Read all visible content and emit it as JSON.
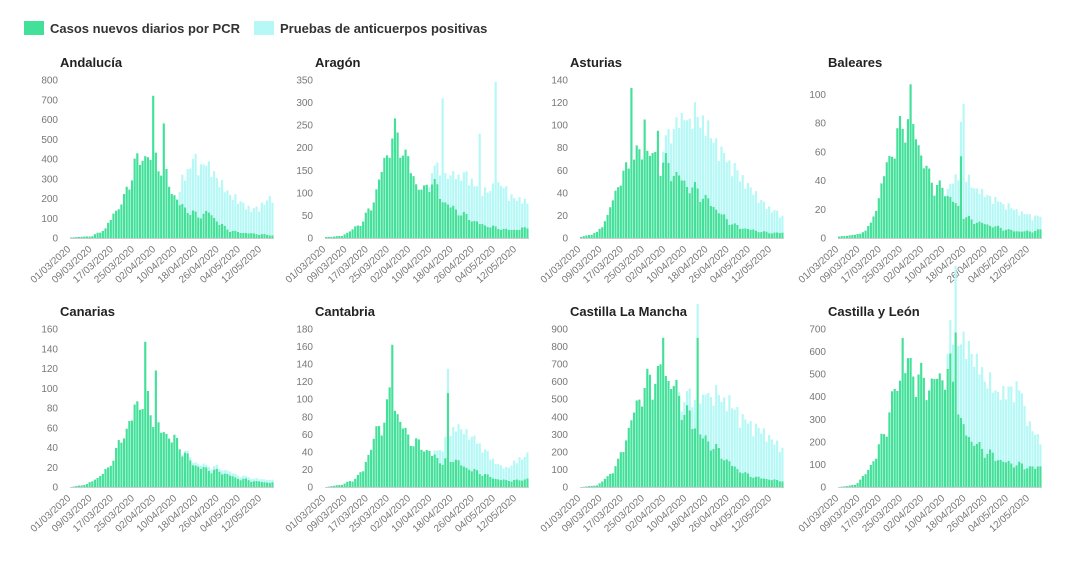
{
  "legend": {
    "pcr_label": "Casos nuevos diarios por PCR",
    "ab_label": "Pruebas de anticuerpos positivas"
  },
  "colors": {
    "pcr": "#43e09a",
    "ab": "#b5f8f6",
    "axis": "#cccccc",
    "text": "#777777"
  },
  "chart_data": [
    {
      "type": "bar",
      "title": "Andalucía",
      "xlabel": "",
      "ylabel": "",
      "ylim": [
        0,
        800
      ],
      "yticks": [
        0,
        100,
        200,
        300,
        400,
        500,
        600,
        700,
        800
      ],
      "xticks": [
        "01/03/2020",
        "09/03/2020",
        "17/03/2020",
        "25/03/2020",
        "02/04/2020",
        "10/04/2020",
        "18/04/2020",
        "26/04/2020",
        "04/05/2020",
        "12/05/2020"
      ],
      "pcr_knots": [
        [
          0,
          3
        ],
        [
          8,
          10
        ],
        [
          13,
          50
        ],
        [
          16,
          130
        ],
        [
          20,
          210
        ],
        [
          24,
          400
        ],
        [
          28,
          450
        ],
        [
          32,
          440
        ],
        [
          36,
          330
        ],
        [
          40,
          200
        ],
        [
          44,
          150
        ],
        [
          48,
          120
        ],
        [
          52,
          140
        ],
        [
          56,
          80
        ],
        [
          60,
          40
        ],
        [
          64,
          30
        ],
        [
          68,
          25
        ],
        [
          72,
          20
        ],
        [
          76,
          15
        ]
      ],
      "ab_knots": [
        [
          0,
          0
        ],
        [
          40,
          0
        ],
        [
          42,
          150
        ],
        [
          46,
          300
        ],
        [
          52,
          260
        ],
        [
          56,
          230
        ],
        [
          60,
          200
        ],
        [
          64,
          170
        ],
        [
          68,
          130
        ],
        [
          72,
          160
        ],
        [
          76,
          220
        ]
      ],
      "pcr_spikes": [
        [
          31,
          720
        ],
        [
          35,
          580
        ]
      ],
      "ab_spikes": []
    },
    {
      "type": "bar",
      "title": "Aragón",
      "xlabel": "",
      "ylabel": "",
      "ylim": [
        0,
        350
      ],
      "yticks": [
        0,
        50,
        100,
        150,
        200,
        250,
        300,
        350
      ],
      "xticks": [
        "01/03/2020",
        "09/03/2020",
        "17/03/2020",
        "25/03/2020",
        "02/04/2020",
        "10/04/2020",
        "18/04/2020",
        "26/04/2020",
        "04/05/2020",
        "12/05/2020"
      ],
      "pcr_knots": [
        [
          0,
          2
        ],
        [
          6,
          5
        ],
        [
          10,
          20
        ],
        [
          14,
          40
        ],
        [
          18,
          90
        ],
        [
          22,
          180
        ],
        [
          25,
          240
        ],
        [
          28,
          230
        ],
        [
          31,
          180
        ],
        [
          34,
          130
        ],
        [
          37,
          110
        ],
        [
          40,
          140
        ],
        [
          44,
          90
        ],
        [
          48,
          70
        ],
        [
          52,
          55
        ],
        [
          56,
          40
        ],
        [
          60,
          30
        ],
        [
          64,
          25
        ],
        [
          68,
          20
        ],
        [
          72,
          20
        ],
        [
          76,
          25
        ]
      ],
      "ab_knots": [
        [
          0,
          0
        ],
        [
          38,
          0
        ],
        [
          42,
          50
        ],
        [
          46,
          70
        ],
        [
          50,
          90
        ],
        [
          54,
          100
        ],
        [
          58,
          80
        ],
        [
          62,
          90
        ],
        [
          66,
          110
        ],
        [
          70,
          80
        ],
        [
          74,
          70
        ],
        [
          76,
          60
        ]
      ],
      "pcr_spikes": [
        [
          26,
          265
        ]
      ],
      "ab_spikes": [
        [
          44,
          230
        ],
        [
          58,
          200
        ],
        [
          64,
          320
        ]
      ]
    },
    {
      "type": "bar",
      "title": "Asturias",
      "xlabel": "",
      "ylabel": "",
      "ylim": [
        0,
        140
      ],
      "yticks": [
        0,
        20,
        40,
        60,
        80,
        100,
        120,
        140
      ],
      "xticks": [
        "01/03/2020",
        "09/03/2020",
        "17/03/2020",
        "25/03/2020",
        "02/04/2020",
        "10/04/2020",
        "18/04/2020",
        "26/04/2020",
        "04/05/2020",
        "12/05/2020"
      ],
      "pcr_knots": [
        [
          0,
          1
        ],
        [
          6,
          5
        ],
        [
          10,
          20
        ],
        [
          13,
          45
        ],
        [
          16,
          60
        ],
        [
          20,
          75
        ],
        [
          24,
          85
        ],
        [
          28,
          75
        ],
        [
          32,
          70
        ],
        [
          36,
          60
        ],
        [
          40,
          50
        ],
        [
          44,
          45
        ],
        [
          48,
          35
        ],
        [
          52,
          25
        ],
        [
          56,
          15
        ],
        [
          60,
          10
        ],
        [
          64,
          8
        ],
        [
          68,
          6
        ],
        [
          72,
          5
        ],
        [
          76,
          5
        ]
      ],
      "ab_knots": [
        [
          0,
          0
        ],
        [
          30,
          0
        ],
        [
          34,
          40
        ],
        [
          38,
          60
        ],
        [
          42,
          70
        ],
        [
          46,
          75
        ],
        [
          50,
          65
        ],
        [
          54,
          60
        ],
        [
          58,
          55
        ],
        [
          62,
          45
        ],
        [
          66,
          35
        ],
        [
          70,
          25
        ],
        [
          74,
          20
        ],
        [
          76,
          15
        ]
      ],
      "pcr_spikes": [
        [
          19,
          133
        ],
        [
          24,
          105
        ],
        [
          29,
          95
        ]
      ],
      "ab_spikes": []
    },
    {
      "type": "bar",
      "title": "Baleares",
      "xlabel": "",
      "ylabel": "",
      "ylim": [
        0,
        110
      ],
      "yticks": [
        0,
        20,
        40,
        60,
        80,
        100
      ],
      "xticks": [
        "01/03/2020",
        "09/03/2020",
        "17/03/2020",
        "25/03/2020",
        "02/04/2020",
        "10/04/2020",
        "18/04/2020",
        "26/04/2020",
        "04/05/2020",
        "12/05/2020"
      ],
      "pcr_knots": [
        [
          0,
          1
        ],
        [
          8,
          3
        ],
        [
          12,
          10
        ],
        [
          15,
          30
        ],
        [
          18,
          55
        ],
        [
          21,
          70
        ],
        [
          24,
          85
        ],
        [
          27,
          90
        ],
        [
          30,
          70
        ],
        [
          33,
          50
        ],
        [
          36,
          40
        ],
        [
          40,
          35
        ],
        [
          44,
          25
        ],
        [
          48,
          15
        ],
        [
          52,
          12
        ],
        [
          56,
          10
        ],
        [
          60,
          8
        ],
        [
          64,
          6
        ],
        [
          68,
          5
        ],
        [
          72,
          5
        ],
        [
          76,
          6
        ]
      ],
      "ab_knots": [
        [
          0,
          0
        ],
        [
          40,
          0
        ],
        [
          44,
          20
        ],
        [
          48,
          30
        ],
        [
          52,
          25
        ],
        [
          56,
          22
        ],
        [
          60,
          20
        ],
        [
          64,
          18
        ],
        [
          68,
          15
        ],
        [
          72,
          12
        ],
        [
          76,
          10
        ]
      ],
      "pcr_spikes": [
        [
          27,
          107
        ],
        [
          46,
          57
        ]
      ],
      "ab_spikes": [
        [
          47,
          80
        ]
      ]
    },
    {
      "type": "bar",
      "title": "Canarias",
      "xlabel": "",
      "ylabel": "",
      "ylim": [
        0,
        160
      ],
      "yticks": [
        0,
        20,
        40,
        60,
        80,
        100,
        120,
        140,
        160
      ],
      "xticks": [
        "01/03/2020",
        "09/03/2020",
        "17/03/2020",
        "25/03/2020",
        "02/04/2020",
        "10/04/2020",
        "18/04/2020",
        "26/04/2020",
        "04/05/2020",
        "12/05/2020"
      ],
      "pcr_knots": [
        [
          0,
          0
        ],
        [
          6,
          3
        ],
        [
          10,
          10
        ],
        [
          14,
          20
        ],
        [
          18,
          45
        ],
        [
          22,
          70
        ],
        [
          25,
          90
        ],
        [
          28,
          100
        ],
        [
          31,
          75
        ],
        [
          34,
          60
        ],
        [
          38,
          55
        ],
        [
          42,
          40
        ],
        [
          46,
          25
        ],
        [
          50,
          20
        ],
        [
          54,
          18
        ],
        [
          58,
          15
        ],
        [
          62,
          10
        ],
        [
          66,
          8
        ],
        [
          70,
          6
        ],
        [
          74,
          5
        ],
        [
          76,
          5
        ]
      ],
      "ab_knots": [
        [
          0,
          0
        ],
        [
          40,
          0
        ],
        [
          44,
          3
        ],
        [
          52,
          4
        ],
        [
          60,
          4
        ],
        [
          68,
          3
        ],
        [
          76,
          3
        ]
      ],
      "pcr_spikes": [
        [
          28,
          147
        ],
        [
          32,
          118
        ]
      ],
      "ab_spikes": []
    },
    {
      "type": "bar",
      "title": "Cantabria",
      "xlabel": "",
      "ylabel": "",
      "ylim": [
        0,
        180
      ],
      "yticks": [
        0,
        20,
        40,
        60,
        80,
        100,
        120,
        140,
        160,
        180
      ],
      "xticks": [
        "01/03/2020",
        "09/03/2020",
        "17/03/2020",
        "25/03/2020",
        "02/04/2020",
        "10/04/2020",
        "18/04/2020",
        "26/04/2020",
        "04/05/2020",
        "12/05/2020"
      ],
      "pcr_knots": [
        [
          0,
          0
        ],
        [
          6,
          3
        ],
        [
          10,
          8
        ],
        [
          14,
          20
        ],
        [
          18,
          60
        ],
        [
          21,
          75
        ],
        [
          24,
          110
        ],
        [
          27,
          90
        ],
        [
          30,
          65
        ],
        [
          33,
          55
        ],
        [
          36,
          50
        ],
        [
          40,
          40
        ],
        [
          44,
          30
        ],
        [
          48,
          35
        ],
        [
          52,
          25
        ],
        [
          56,
          20
        ],
        [
          60,
          15
        ],
        [
          64,
          10
        ],
        [
          68,
          8
        ],
        [
          72,
          8
        ],
        [
          76,
          10
        ]
      ],
      "ab_knots": [
        [
          0,
          0
        ],
        [
          40,
          0
        ],
        [
          44,
          20
        ],
        [
          48,
          40
        ],
        [
          52,
          45
        ],
        [
          56,
          40
        ],
        [
          60,
          30
        ],
        [
          64,
          20
        ],
        [
          68,
          15
        ],
        [
          72,
          25
        ],
        [
          76,
          30
        ]
      ],
      "pcr_spikes": [
        [
          25,
          162
        ],
        [
          46,
          107
        ]
      ],
      "ab_spikes": []
    },
    {
      "type": "bar",
      "title": "Castilla La Mancha",
      "xlabel": "",
      "ylabel": "",
      "ylim": [
        0,
        900
      ],
      "yticks": [
        0,
        100,
        200,
        300,
        400,
        500,
        600,
        700,
        800,
        900
      ],
      "xticks": [
        "01/03/2020",
        "09/03/2020",
        "17/03/2020",
        "25/03/2020",
        "02/04/2020",
        "10/04/2020",
        "18/04/2020",
        "26/04/2020",
        "04/05/2020",
        "12/05/2020"
      ],
      "pcr_knots": [
        [
          0,
          0
        ],
        [
          6,
          10
        ],
        [
          10,
          60
        ],
        [
          14,
          150
        ],
        [
          18,
          350
        ],
        [
          22,
          550
        ],
        [
          26,
          650
        ],
        [
          30,
          700
        ],
        [
          34,
          650
        ],
        [
          38,
          500
        ],
        [
          42,
          400
        ],
        [
          46,
          300
        ],
        [
          50,
          250
        ],
        [
          54,
          180
        ],
        [
          58,
          120
        ],
        [
          62,
          80
        ],
        [
          66,
          60
        ],
        [
          70,
          50
        ],
        [
          74,
          40
        ],
        [
          76,
          40
        ]
      ],
      "ab_knots": [
        [
          0,
          0
        ],
        [
          36,
          0
        ],
        [
          40,
          100
        ],
        [
          44,
          200
        ],
        [
          48,
          300
        ],
        [
          52,
          350
        ],
        [
          56,
          380
        ],
        [
          60,
          350
        ],
        [
          64,
          320
        ],
        [
          68,
          300
        ],
        [
          72,
          250
        ],
        [
          76,
          200
        ]
      ],
      "pcr_spikes": [
        [
          31,
          850
        ],
        [
          44,
          850
        ]
      ],
      "ab_spikes": []
    },
    {
      "type": "bar",
      "title": "Castilla y León",
      "xlabel": "",
      "ylabel": "",
      "ylim": [
        0,
        700
      ],
      "yticks": [
        0,
        100,
        200,
        300,
        400,
        500,
        600,
        700
      ],
      "xticks": [
        "01/03/2020",
        "09/03/2020",
        "17/03/2020",
        "25/03/2020",
        "02/04/2020",
        "10/04/2020",
        "18/04/2020",
        "26/04/2020",
        "04/05/2020",
        "12/05/2020"
      ],
      "pcr_knots": [
        [
          0,
          0
        ],
        [
          6,
          10
        ],
        [
          10,
          60
        ],
        [
          14,
          150
        ],
        [
          18,
          300
        ],
        [
          22,
          500
        ],
        [
          26,
          580
        ],
        [
          30,
          520
        ],
        [
          34,
          480
        ],
        [
          38,
          520
        ],
        [
          42,
          550
        ],
        [
          46,
          300
        ],
        [
          50,
          220
        ],
        [
          54,
          180
        ],
        [
          58,
          150
        ],
        [
          62,
          120
        ],
        [
          66,
          110
        ],
        [
          70,
          100
        ],
        [
          74,
          90
        ],
        [
          76,
          100
        ]
      ],
      "ab_knots": [
        [
          0,
          0
        ],
        [
          40,
          0
        ],
        [
          44,
          300
        ],
        [
          48,
          450
        ],
        [
          52,
          400
        ],
        [
          56,
          350
        ],
        [
          60,
          320
        ],
        [
          64,
          350
        ],
        [
          68,
          380
        ],
        [
          72,
          200
        ],
        [
          76,
          130
        ]
      ],
      "pcr_spikes": [
        [
          24,
          660
        ],
        [
          44,
          685
        ]
      ],
      "ab_spikes": []
    }
  ]
}
